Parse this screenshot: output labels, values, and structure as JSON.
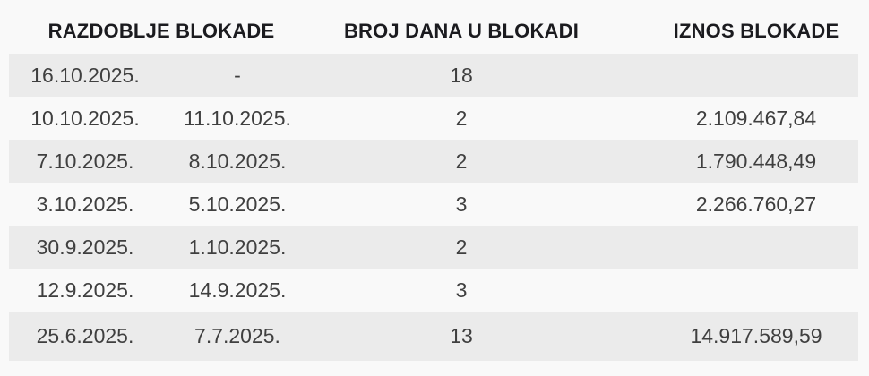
{
  "table": {
    "headers": {
      "period": "RAZDOBLJE BLOKADE",
      "days": "BROJ DANA U BLOKADI",
      "amount": "IZNOS BLOKADE"
    },
    "rows": [
      {
        "from": "16.10.2025.",
        "to": "-",
        "days": "18",
        "amount": ""
      },
      {
        "from": "10.10.2025.",
        "to": "11.10.2025.",
        "days": "2",
        "amount": "2.109.467,84"
      },
      {
        "from": "7.10.2025.",
        "to": "8.10.2025.",
        "days": "2",
        "amount": "1.790.448,49"
      },
      {
        "from": "3.10.2025.",
        "to": "5.10.2025.",
        "days": "3",
        "amount": "2.266.760,27"
      },
      {
        "from": "30.9.2025.",
        "to": "1.10.2025.",
        "days": "2",
        "amount": ""
      },
      {
        "from": "12.9.2025.",
        "to": "14.9.2025.",
        "days": "3",
        "amount": ""
      },
      {
        "from": "25.6.2025.",
        "to": "7.7.2025.",
        "days": "13",
        "amount": "14.917.589,59"
      }
    ],
    "colors": {
      "page_background": "#f9f9f9",
      "row_stripe": "#ebebeb",
      "header_text": "#1b1b1f",
      "body_text": "#3f3f3f"
    }
  },
  "chart_data": {
    "type": "table",
    "title": "",
    "columns": [
      "RAZDOBLJE BLOKADE",
      "RAZDOBLJE BLOKADE",
      "BROJ DANA U BLOKADI",
      "IZNOS BLOKADE"
    ],
    "rows": [
      [
        "16.10.2025.",
        "-",
        "18",
        ""
      ],
      [
        "10.10.2025.",
        "11.10.2025.",
        "2",
        "2.109.467,84"
      ],
      [
        "7.10.2025.",
        "8.10.2025.",
        "2",
        "1.790.448,49"
      ],
      [
        "3.10.2025.",
        "5.10.2025.",
        "3",
        "2.266.760,27"
      ],
      [
        "30.9.2025.",
        "1.10.2025.",
        "2",
        ""
      ],
      [
        "12.9.2025.",
        "14.9.2025.",
        "3",
        ""
      ],
      [
        "25.6.2025.",
        "7.7.2025.",
        "13",
        "14.917.589,59"
      ]
    ],
    "layout": {
      "first_header_spans_two_columns": true,
      "alignment": "center",
      "striped_rows": "odd rows gray"
    }
  }
}
